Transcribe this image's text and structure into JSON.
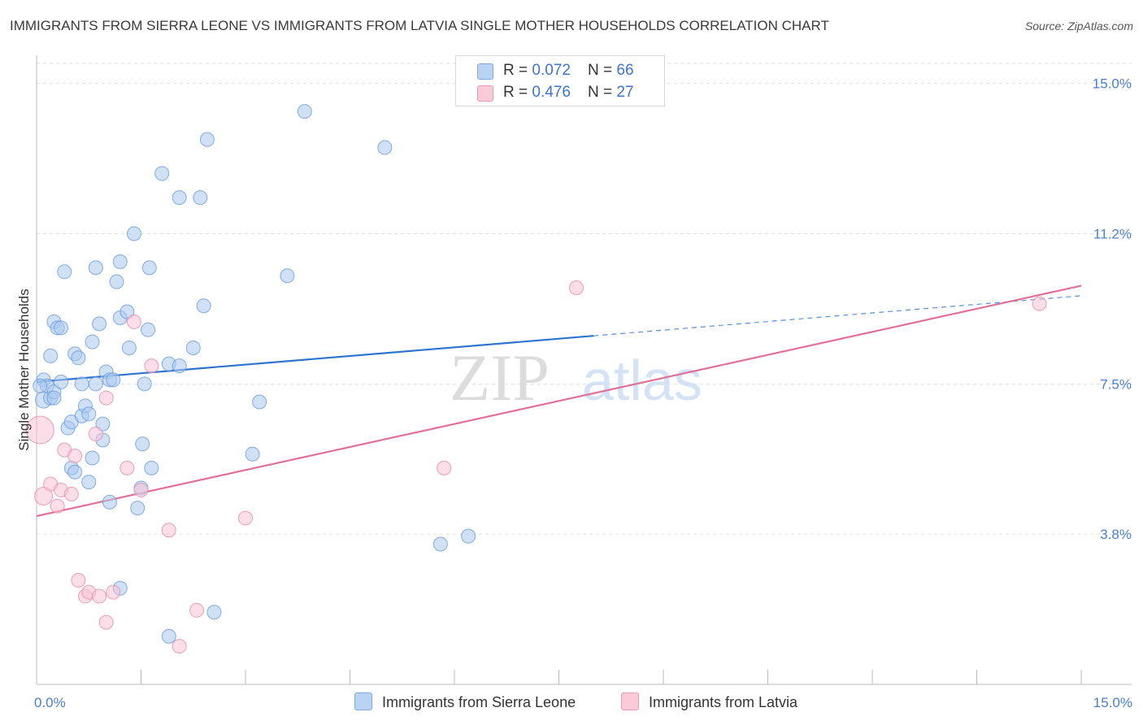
{
  "header": {
    "title": "IMMIGRANTS FROM SIERRA LEONE VS IMMIGRANTS FROM LATVIA SINGLE MOTHER HOUSEHOLDS CORRELATION CHART",
    "source": "Source: ZipAtlas.com"
  },
  "watermark": {
    "zip": "ZIP",
    "atlas": "atlas"
  },
  "legend": {
    "rows": [
      {
        "r_label": "R = ",
        "r_value": "0.072",
        "n_label": "N = ",
        "n_value": "66"
      },
      {
        "r_label": "R = ",
        "r_value": "0.476",
        "n_label": "N = ",
        "n_value": "27"
      }
    ]
  },
  "chart_data": {
    "type": "scatter",
    "title": "IMMIGRANTS FROM SIERRA LEONE VS IMMIGRANTS FROM LATVIA SINGLE MOTHER HOUSEHOLDS CORRELATION CHART",
    "xlabel": "",
    "ylabel": "Single Mother Households",
    "xlim": [
      0,
      15
    ],
    "ylim": [
      0,
      15.5
    ],
    "x_tick_labels": [
      "0.0%",
      "15.0%"
    ],
    "y_tick_labels": [
      "15.0%",
      "11.2%",
      "7.5%",
      "3.8%"
    ],
    "y_ticks": [
      15.0,
      11.25,
      7.5,
      3.75
    ],
    "grid": true,
    "series": [
      {
        "name": "Immigrants from Sierra Leone",
        "color": "#a9c8ef",
        "stroke": "#6f9fdc",
        "trend_color": "#2f73d0",
        "trend": {
          "x0": 0,
          "y0": 7.55,
          "x1": 8.0,
          "y1": 8.7,
          "dashed_to_x": 15.0,
          "dashed_to_y": 9.7
        },
        "points": [
          [
            0.1,
            7.6
          ],
          [
            0.1,
            7.1
          ],
          [
            0.15,
            7.45
          ],
          [
            0.2,
            7.15
          ],
          [
            0.25,
            7.3
          ],
          [
            0.2,
            8.2
          ],
          [
            0.25,
            7.15
          ],
          [
            0.25,
            9.05
          ],
          [
            0.3,
            8.9
          ],
          [
            0.35,
            8.9
          ],
          [
            0.35,
            7.55
          ],
          [
            0.4,
            10.3
          ],
          [
            0.45,
            6.4
          ],
          [
            0.5,
            6.55
          ],
          [
            0.5,
            5.4
          ],
          [
            0.55,
            8.25
          ],
          [
            0.55,
            5.3
          ],
          [
            0.6,
            8.15
          ],
          [
            0.65,
            6.7
          ],
          [
            0.65,
            7.5
          ],
          [
            0.7,
            6.95
          ],
          [
            0.75,
            6.75
          ],
          [
            0.75,
            5.05
          ],
          [
            0.8,
            5.65
          ],
          [
            0.8,
            8.55
          ],
          [
            0.85,
            7.5
          ],
          [
            0.85,
            10.4
          ],
          [
            0.9,
            9.0
          ],
          [
            0.95,
            6.1
          ],
          [
            0.95,
            6.5
          ],
          [
            1.0,
            7.8
          ],
          [
            1.05,
            7.6
          ],
          [
            1.05,
            4.55
          ],
          [
            1.1,
            7.6
          ],
          [
            1.15,
            10.05
          ],
          [
            1.2,
            2.4
          ],
          [
            1.2,
            10.55
          ],
          [
            1.2,
            9.15
          ],
          [
            1.3,
            9.3
          ],
          [
            1.33,
            8.4
          ],
          [
            1.4,
            11.25
          ],
          [
            1.45,
            4.4
          ],
          [
            1.5,
            4.9
          ],
          [
            1.52,
            6.0
          ],
          [
            1.55,
            7.5
          ],
          [
            1.6,
            8.85
          ],
          [
            1.62,
            10.4
          ],
          [
            1.65,
            5.4
          ],
          [
            1.8,
            12.75
          ],
          [
            1.9,
            1.2
          ],
          [
            1.9,
            8.0
          ],
          [
            2.05,
            12.15
          ],
          [
            2.05,
            7.95
          ],
          [
            2.25,
            8.4
          ],
          [
            2.35,
            12.15
          ],
          [
            2.4,
            9.45
          ],
          [
            2.45,
            13.6
          ],
          [
            2.55,
            1.8
          ],
          [
            3.1,
            5.75
          ],
          [
            3.2,
            7.05
          ],
          [
            3.6,
            10.2
          ],
          [
            3.85,
            14.3
          ],
          [
            5.0,
            13.4
          ],
          [
            5.8,
            3.5
          ],
          [
            6.2,
            3.7
          ],
          [
            0.05,
            7.45
          ]
        ]
      },
      {
        "name": "Immigrants from Latvia",
        "color": "#f7c2d3",
        "stroke": "#e98fae",
        "trend_color": "#e0709a",
        "trend": {
          "x0": 0,
          "y0": 4.2,
          "x1": 15.0,
          "y1": 9.95
        },
        "points": [
          [
            0.05,
            6.35
          ],
          [
            0.1,
            4.7
          ],
          [
            0.2,
            5.0
          ],
          [
            0.3,
            4.45
          ],
          [
            0.35,
            4.85
          ],
          [
            0.4,
            5.85
          ],
          [
            0.5,
            4.75
          ],
          [
            0.55,
            5.7
          ],
          [
            0.6,
            2.6
          ],
          [
            0.7,
            2.2
          ],
          [
            0.75,
            2.3
          ],
          [
            0.85,
            6.25
          ],
          [
            0.9,
            2.2
          ],
          [
            1.0,
            1.55
          ],
          [
            1.0,
            7.15
          ],
          [
            1.1,
            2.3
          ],
          [
            1.3,
            5.4
          ],
          [
            1.4,
            9.05
          ],
          [
            1.5,
            4.85
          ],
          [
            1.65,
            7.95
          ],
          [
            1.9,
            3.85
          ],
          [
            2.05,
            0.95
          ],
          [
            2.3,
            1.85
          ],
          [
            3.0,
            4.15
          ],
          [
            5.85,
            5.4
          ],
          [
            7.75,
            9.9
          ],
          [
            14.4,
            9.5
          ]
        ]
      }
    ]
  }
}
